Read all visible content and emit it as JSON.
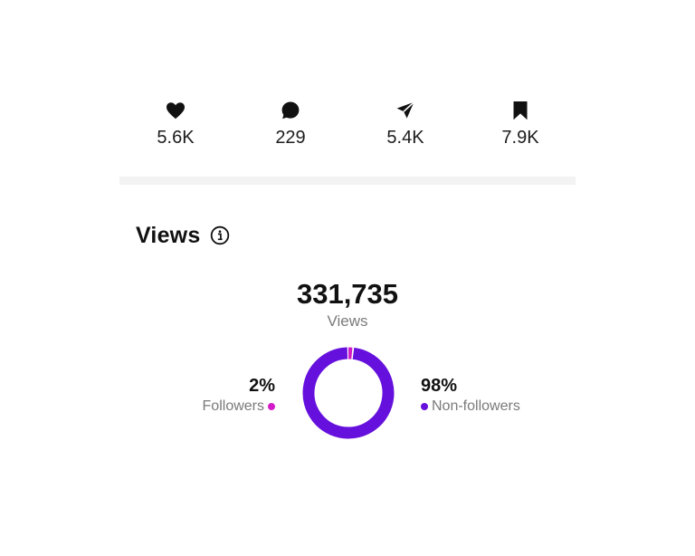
{
  "engagement": [
    {
      "icon": "heart-icon",
      "value": "5.6K"
    },
    {
      "icon": "comment-icon",
      "value": "229"
    },
    {
      "icon": "share-icon",
      "value": "5.4K"
    },
    {
      "icon": "bookmark-icon",
      "value": "7.9K"
    }
  ],
  "views": {
    "title": "Views",
    "info_icon": "info-icon",
    "total": "331,735",
    "total_label": "Views",
    "followers": {
      "percent": "2%",
      "label": "Followers",
      "fraction": 0.02,
      "color": "#d31cc8"
    },
    "non_followers": {
      "percent": "98%",
      "label": "Non-followers",
      "fraction": 0.98,
      "color": "#6510dc"
    }
  }
}
